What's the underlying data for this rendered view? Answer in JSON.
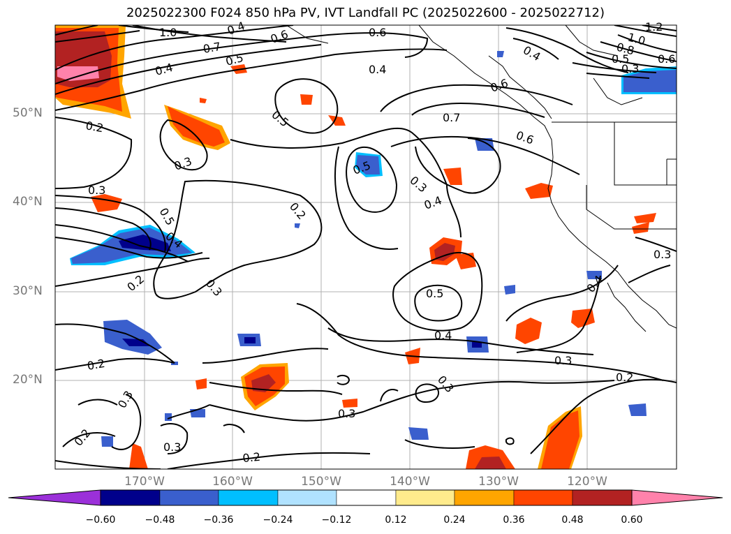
{
  "title": "2025022300 F024 850 hPa PV, IVT Landfall PC (2025022600 - 2025022712)",
  "lat_labels": [
    "50°N",
    "40°N",
    "30°N",
    "20°N"
  ],
  "lon_labels": [
    "170°W",
    "160°W",
    "150°W",
    "140°W",
    "130°W",
    "120°W"
  ],
  "colorbar": {
    "ticks": [
      "−0.60",
      "−0.48",
      "−0.36",
      "−0.24",
      "−0.12",
      "0.12",
      "0.24",
      "0.36",
      "0.48",
      "0.60"
    ],
    "colors": [
      "#9b30d9",
      "#00008b",
      "#3a5fcd",
      "#00bfff",
      "#b0e2ff",
      "#ffffff",
      "#ffeb8c",
      "#ffa500",
      "#ff4500",
      "#b22222",
      "#ff82ab"
    ]
  },
  "contour_labels": {
    "c1": "1.0",
    "c2": "0.7",
    "c3": "0.6",
    "c4": "0.5",
    "c5": "0.4",
    "c6": "0.6",
    "c7": "0.4",
    "c8": "0.4",
    "c9": "0.6",
    "c10": "0.4",
    "c11": "1.2",
    "c12": "1.0",
    "c13": "0.8",
    "c14": "0.5",
    "c15": "0.3",
    "c16": "0.6",
    "c17": "0.5",
    "c18": "0.7",
    "c19": "0.6",
    "c20": "0.2",
    "c21": "0.3",
    "c22": "0.3",
    "c23": "0.5",
    "c24": "0.4",
    "c25": "0.5",
    "c26": "0.3",
    "c27": "0.2",
    "c28": "0.4",
    "c29": "0.2",
    "c30": "0.3",
    "c31": "0.5",
    "c32": "0.4",
    "c33": "0.3",
    "c34": "0.2",
    "c35": "0.3",
    "c36": "0.3",
    "c37": "0.3",
    "c38": "0.2",
    "c39": "0.2",
    "c40": "0.3",
    "c41": "0.2",
    "c42": "0.3",
    "c43": "0.4"
  }
}
